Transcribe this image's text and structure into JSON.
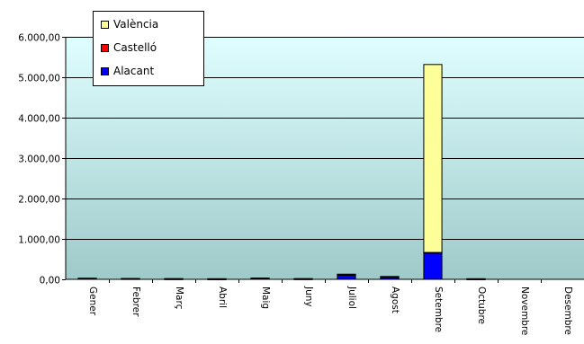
{
  "chart_data": {
    "type": "bar",
    "stacked": true,
    "categories": [
      "Gener",
      "Febrer",
      "Març",
      "Abril",
      "Maig",
      "Juny",
      "Juliol",
      "Agost",
      "Setembre",
      "Octubre",
      "Novembre",
      "Desembre"
    ],
    "series": [
      {
        "name": "Alacant",
        "color": "#0000FF",
        "values": [
          20,
          15,
          12,
          10,
          20,
          12,
          110,
          55,
          650,
          10,
          0,
          0
        ]
      },
      {
        "name": "Castelló",
        "color": "#FF0000",
        "values": [
          3,
          2,
          2,
          2,
          3,
          2,
          8,
          6,
          15,
          2,
          0,
          0
        ]
      },
      {
        "name": "València",
        "color": "#FFFF99",
        "values": [
          5,
          3,
          3,
          3,
          10,
          3,
          10,
          10,
          4650,
          3,
          0,
          0
        ]
      }
    ],
    "legend_order": [
      "València",
      "Castelló",
      "Alacant"
    ],
    "title": "",
    "xlabel": "",
    "ylabel": "",
    "ylim": [
      0,
      6000
    ],
    "yticks": [
      0,
      1000,
      2000,
      3000,
      4000,
      5000,
      6000
    ],
    "ytick_labels": [
      "0,00",
      "1.000,00",
      "2.000,00",
      "3.000,00",
      "4.000,00",
      "5.000,00",
      "6.000,00"
    ],
    "grid": true,
    "legend_position": "top-left"
  }
}
